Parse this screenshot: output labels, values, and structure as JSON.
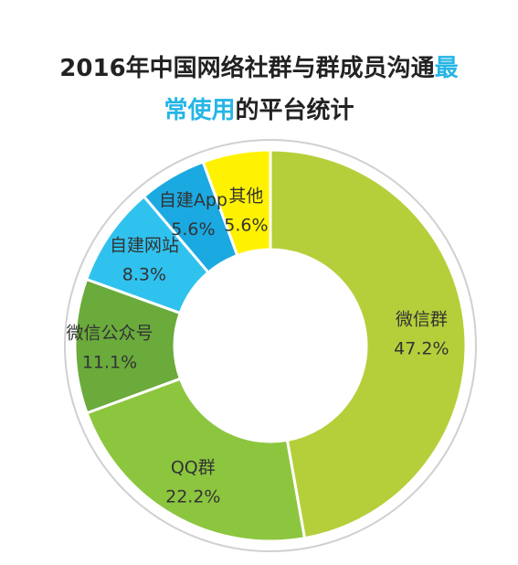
{
  "title": {
    "line1_prefix": "2016年中国网络社群与群成员沟通",
    "line1_highlight": "最",
    "line2_highlight": "常使用",
    "line2_suffix": "的平台统计",
    "highlight_color": "#26b5e6"
  },
  "chart_data": {
    "type": "pie",
    "variant": "donut",
    "categories": [
      "微信群",
      "QQ群",
      "微信公众号",
      "自建网站",
      "自建App",
      "其他"
    ],
    "values": [
      47.2,
      22.2,
      11.1,
      8.3,
      5.6,
      5.6
    ],
    "value_labels": [
      "47.2%",
      "22.2%",
      "11.1%",
      "8.3%",
      "5.6%",
      "5.6%"
    ],
    "colors": [
      "#b5cf3b",
      "#8cc63f",
      "#6aab3c",
      "#2fc2ee",
      "#1ba9e1",
      "#fff200"
    ],
    "legend": "none"
  }
}
